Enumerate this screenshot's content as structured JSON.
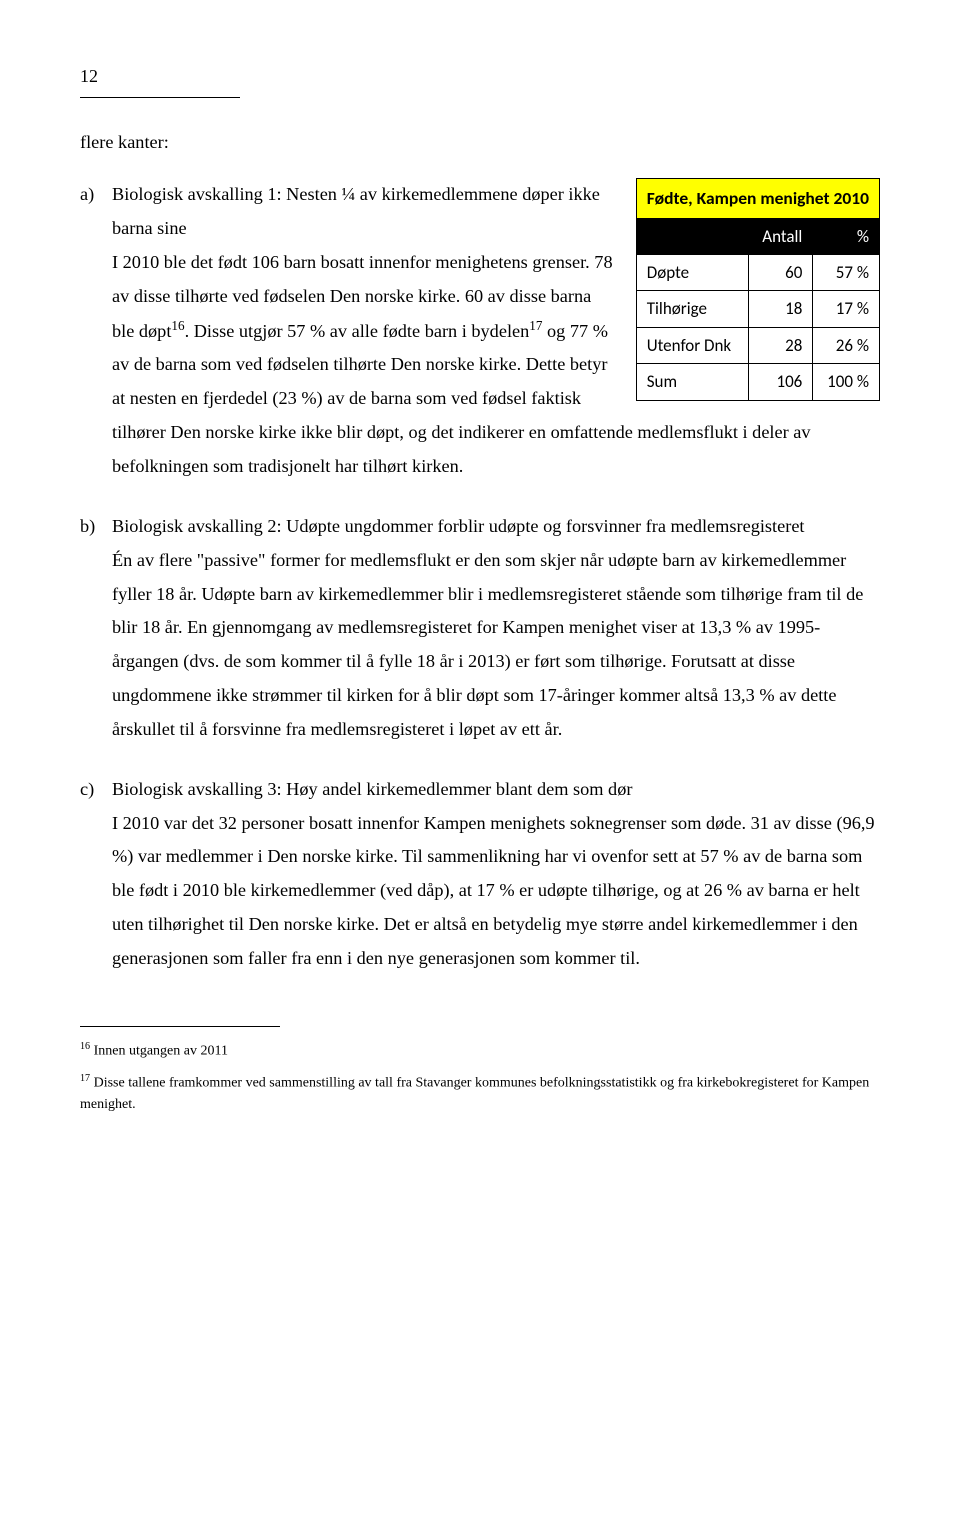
{
  "pageNumber": "12",
  "intro": "flere kanter:",
  "table": {
    "title": "Fødte, Kampen menighet 2010",
    "headers": [
      "",
      "Antall",
      "%"
    ],
    "rows": [
      [
        "Døpte",
        "60",
        "57 %"
      ],
      [
        "Tilhørige",
        "18",
        "17 %"
      ],
      [
        "Utenfor Dnk",
        "28",
        "26 %"
      ],
      [
        "Sum",
        "106",
        "100 %"
      ]
    ],
    "titleBg": "#ffff00",
    "headerBg": "#000000",
    "headerColor": "#ffffff",
    "borderColor": "#000000"
  },
  "itemA": {
    "marker": "a)",
    "headline": "Biologisk avskalling 1: Nesten ¼ av kirkemedlemmene døper ikke barna sine",
    "body_pre": "I 2010 ble det født 106 barn bosatt innenfor menighetens grenser. 78 av disse tilhørte ved fødselen Den norske kirke. 60 av disse barna ble døpt",
    "sup1": "16",
    "body_mid": ". Disse utgjør 57 % av alle fødte barn i bydelen",
    "sup2": "17",
    "body_post": " og 77 % av de barna som ved fødselen tilhørte Den norske kirke. Dette betyr at nesten en fjerdedel (23 %) av de barna som ved fødsel faktisk tilhører Den norske kirke ikke blir døpt, og det indikerer en omfattende medlemsflukt i deler av befolkningen som tradisjonelt har tilhørt kirken."
  },
  "itemB": {
    "marker": "b)",
    "headline": "Biologisk avskalling 2: Udøpte ungdommer forblir udøpte og forsvinner fra medlemsregisteret",
    "body": "Én av flere \"passive\" former for medlemsflukt er den som skjer når udøpte barn av kirkemedlemmer fyller 18 år. Udøpte barn av kirkemedlemmer blir i medlemsregisteret stående som tilhørige fram til de blir 18 år. En gjennomgang av medlemsregisteret for Kampen menighet viser at 13,3 % av 1995-årgangen (dvs. de som kommer til å fylle 18 år i 2013) er ført som tilhørige. Forutsatt at disse ungdommene ikke strømmer til kirken for å blir døpt som 17-åringer kommer altså 13,3 % av dette årskullet til å forsvinne fra medlemsregisteret i løpet av ett år."
  },
  "itemC": {
    "marker": "c)",
    "headline": "Biologisk avskalling 3: Høy andel kirkemedlemmer blant dem som dør",
    "body": "I 2010 var det 32 personer bosatt innenfor Kampen menighets soknegrenser som døde. 31 av disse (96,9 %) var medlemmer i Den norske kirke. Til sammenlikning har vi ovenfor sett at 57 % av de barna som ble født i 2010 ble kirkemedlemmer (ved dåp), at 17 % er udøpte tilhørige, og at 26 % av barna er helt uten tilhørighet til Den norske kirke. Det er altså en betydelig mye større andel kirkemedlemmer i den generasjonen som faller fra enn i den nye generasjonen som kommer til."
  },
  "footnotes": {
    "fn16": {
      "num": "16",
      "text": " Innen utgangen av 2011"
    },
    "fn17": {
      "num": "17",
      "text": " Disse tallene framkommer ved sammenstilling av tall fra Stavanger kommunes befolkningsstatistikk og fra kirkebokregisteret for Kampen menighet."
    }
  }
}
